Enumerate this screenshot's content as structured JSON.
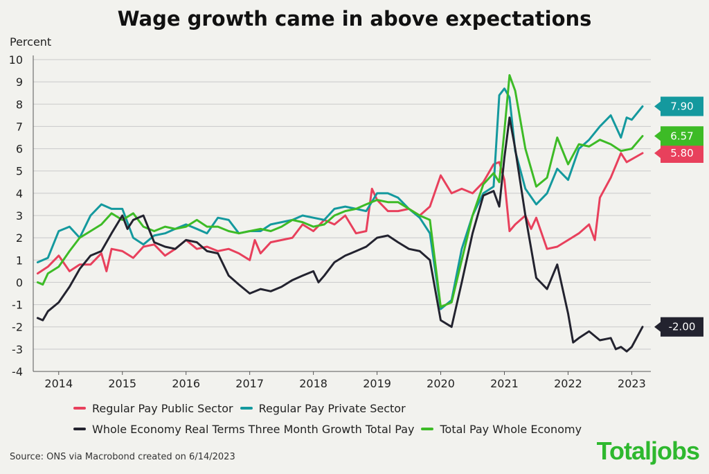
{
  "title": "Wage growth came in above expectations",
  "source": "Source: ONS via Macrobond created on 6/14/2023",
  "brand": "Totaljobs",
  "colors": {
    "public": "#e8405c",
    "private": "#14999e",
    "real": "#23232f",
    "total": "#3dbb26",
    "grid": "#c9c9c9",
    "background": "#f2f2ee"
  },
  "chart_data": {
    "type": "line",
    "ylabel": "Percent",
    "ylim": [
      -4,
      10
    ],
    "yticks": [
      -4,
      -3,
      -2,
      -1,
      0,
      1,
      2,
      3,
      4,
      5,
      6,
      7,
      8,
      9,
      10
    ],
    "ytick_labels": [
      "-4",
      "-3",
      "-2",
      "-1",
      "0",
      "1",
      "2",
      "3",
      "4",
      "5",
      "6",
      "7",
      "8",
      "9",
      "10"
    ],
    "xlim": [
      2013.6,
      2023.3
    ],
    "xticks": [
      2014,
      2015,
      2016,
      2017,
      2018,
      2019,
      2020,
      2021,
      2022,
      2023
    ],
    "xtick_labels": [
      "2014",
      "2015",
      "2016",
      "2017",
      "2018",
      "2019",
      "2020",
      "2021",
      "2022",
      "2023"
    ],
    "grid": "horizontal",
    "legend_position": "bottom",
    "series": [
      {
        "name": "Regular Pay Public Sector",
        "color_key": "public",
        "end_label": "5.80",
        "points": [
          [
            2013.67,
            0.4
          ],
          [
            2013.83,
            0.7
          ],
          [
            2014.0,
            1.2
          ],
          [
            2014.17,
            0.5
          ],
          [
            2014.33,
            0.8
          ],
          [
            2014.5,
            0.8
          ],
          [
            2014.67,
            1.3
          ],
          [
            2014.75,
            0.5
          ],
          [
            2014.83,
            1.5
          ],
          [
            2015.0,
            1.4
          ],
          [
            2015.17,
            1.1
          ],
          [
            2015.33,
            1.6
          ],
          [
            2015.5,
            1.7
          ],
          [
            2015.67,
            1.2
          ],
          [
            2015.83,
            1.5
          ],
          [
            2016.0,
            1.9
          ],
          [
            2016.17,
            1.5
          ],
          [
            2016.33,
            1.6
          ],
          [
            2016.5,
            1.4
          ],
          [
            2016.67,
            1.5
          ],
          [
            2016.83,
            1.3
          ],
          [
            2017.0,
            1.0
          ],
          [
            2017.08,
            1.9
          ],
          [
            2017.17,
            1.3
          ],
          [
            2017.33,
            1.8
          ],
          [
            2017.5,
            1.9
          ],
          [
            2017.67,
            2.0
          ],
          [
            2017.83,
            2.6
          ],
          [
            2018.0,
            2.3
          ],
          [
            2018.17,
            2.8
          ],
          [
            2018.33,
            2.6
          ],
          [
            2018.5,
            3.0
          ],
          [
            2018.67,
            2.2
          ],
          [
            2018.83,
            2.3
          ],
          [
            2018.92,
            4.2
          ],
          [
            2019.0,
            3.7
          ],
          [
            2019.17,
            3.2
          ],
          [
            2019.33,
            3.2
          ],
          [
            2019.5,
            3.3
          ],
          [
            2019.67,
            3.0
          ],
          [
            2019.83,
            3.4
          ],
          [
            2020.0,
            4.8
          ],
          [
            2020.17,
            4.0
          ],
          [
            2020.33,
            4.2
          ],
          [
            2020.5,
            4.0
          ],
          [
            2020.67,
            4.5
          ],
          [
            2020.83,
            5.3
          ],
          [
            2020.92,
            5.4
          ],
          [
            2021.0,
            4.6
          ],
          [
            2021.08,
            2.3
          ],
          [
            2021.17,
            2.6
          ],
          [
            2021.33,
            3.0
          ],
          [
            2021.42,
            2.4
          ],
          [
            2021.5,
            2.9
          ],
          [
            2021.67,
            1.5
          ],
          [
            2021.83,
            1.6
          ],
          [
            2022.0,
            1.9
          ],
          [
            2022.17,
            2.2
          ],
          [
            2022.33,
            2.6
          ],
          [
            2022.42,
            1.9
          ],
          [
            2022.5,
            3.8
          ],
          [
            2022.67,
            4.7
          ],
          [
            2022.83,
            5.8
          ],
          [
            2022.92,
            5.4
          ],
          [
            2023.17,
            5.8
          ]
        ]
      },
      {
        "name": "Regular Pay Private Sector",
        "color_key": "private",
        "end_label": "7.90",
        "points": [
          [
            2013.67,
            0.9
          ],
          [
            2013.83,
            1.1
          ],
          [
            2014.0,
            2.3
          ],
          [
            2014.17,
            2.5
          ],
          [
            2014.33,
            2.0
          ],
          [
            2014.5,
            3.0
          ],
          [
            2014.67,
            3.5
          ],
          [
            2014.83,
            3.3
          ],
          [
            2015.0,
            3.3
          ],
          [
            2015.17,
            2.0
          ],
          [
            2015.33,
            1.7
          ],
          [
            2015.5,
            2.1
          ],
          [
            2015.67,
            2.2
          ],
          [
            2015.83,
            2.4
          ],
          [
            2016.0,
            2.6
          ],
          [
            2016.17,
            2.4
          ],
          [
            2016.33,
            2.2
          ],
          [
            2016.5,
            2.9
          ],
          [
            2016.67,
            2.8
          ],
          [
            2016.83,
            2.2
          ],
          [
            2017.0,
            2.3
          ],
          [
            2017.17,
            2.3
          ],
          [
            2017.33,
            2.6
          ],
          [
            2017.5,
            2.7
          ],
          [
            2017.67,
            2.8
          ],
          [
            2017.83,
            3.0
          ],
          [
            2018.0,
            2.9
          ],
          [
            2018.17,
            2.8
          ],
          [
            2018.33,
            3.3
          ],
          [
            2018.5,
            3.4
          ],
          [
            2018.67,
            3.3
          ],
          [
            2018.83,
            3.2
          ],
          [
            2019.0,
            4.0
          ],
          [
            2019.17,
            4.0
          ],
          [
            2019.33,
            3.8
          ],
          [
            2019.5,
            3.3
          ],
          [
            2019.67,
            2.9
          ],
          [
            2019.83,
            2.2
          ],
          [
            2020.0,
            -1.2
          ],
          [
            2020.17,
            -0.8
          ],
          [
            2020.33,
            1.5
          ],
          [
            2020.5,
            3.0
          ],
          [
            2020.67,
            4.0
          ],
          [
            2020.83,
            4.3
          ],
          [
            2020.92,
            8.4
          ],
          [
            2021.0,
            8.7
          ],
          [
            2021.08,
            8.3
          ],
          [
            2021.17,
            5.9
          ],
          [
            2021.33,
            4.2
          ],
          [
            2021.5,
            3.5
          ],
          [
            2021.67,
            4.0
          ],
          [
            2021.83,
            5.1
          ],
          [
            2022.0,
            4.6
          ],
          [
            2022.17,
            6.0
          ],
          [
            2022.33,
            6.4
          ],
          [
            2022.5,
            7.0
          ],
          [
            2022.67,
            7.5
          ],
          [
            2022.83,
            6.5
          ],
          [
            2022.92,
            7.4
          ],
          [
            2023.0,
            7.3
          ],
          [
            2023.17,
            7.9
          ]
        ]
      },
      {
        "name": "Whole Economy Real Terms Three Month Growth Total Pay",
        "color_key": "real",
        "end_label": "-2.00",
        "points": [
          [
            2013.67,
            -1.6
          ],
          [
            2013.75,
            -1.7
          ],
          [
            2013.83,
            -1.3
          ],
          [
            2014.0,
            -0.9
          ],
          [
            2014.17,
            -0.2
          ],
          [
            2014.33,
            0.6
          ],
          [
            2014.5,
            1.2
          ],
          [
            2014.67,
            1.4
          ],
          [
            2014.83,
            2.2
          ],
          [
            2015.0,
            3.0
          ],
          [
            2015.08,
            2.4
          ],
          [
            2015.17,
            2.8
          ],
          [
            2015.33,
            3.0
          ],
          [
            2015.5,
            1.8
          ],
          [
            2015.67,
            1.6
          ],
          [
            2015.83,
            1.5
          ],
          [
            2016.0,
            1.9
          ],
          [
            2016.17,
            1.8
          ],
          [
            2016.33,
            1.4
          ],
          [
            2016.5,
            1.3
          ],
          [
            2016.67,
            0.3
          ],
          [
            2016.83,
            -0.1
          ],
          [
            2017.0,
            -0.5
          ],
          [
            2017.17,
            -0.3
          ],
          [
            2017.33,
            -0.4
          ],
          [
            2017.5,
            -0.2
          ],
          [
            2017.67,
            0.1
          ],
          [
            2017.83,
            0.3
          ],
          [
            2018.0,
            0.5
          ],
          [
            2018.08,
            0.0
          ],
          [
            2018.17,
            0.3
          ],
          [
            2018.33,
            0.9
          ],
          [
            2018.5,
            1.2
          ],
          [
            2018.67,
            1.4
          ],
          [
            2018.83,
            1.6
          ],
          [
            2019.0,
            2.0
          ],
          [
            2019.17,
            2.1
          ],
          [
            2019.33,
            1.8
          ],
          [
            2019.5,
            1.5
          ],
          [
            2019.67,
            1.4
          ],
          [
            2019.83,
            1.0
          ],
          [
            2020.0,
            -1.7
          ],
          [
            2020.17,
            -2.0
          ],
          [
            2020.33,
            0.0
          ],
          [
            2020.5,
            2.2
          ],
          [
            2020.67,
            3.9
          ],
          [
            2020.83,
            4.1
          ],
          [
            2020.92,
            3.4
          ],
          [
            2021.0,
            5.6
          ],
          [
            2021.08,
            7.4
          ],
          [
            2021.17,
            6.0
          ],
          [
            2021.33,
            3.0
          ],
          [
            2021.5,
            0.2
          ],
          [
            2021.67,
            -0.3
          ],
          [
            2021.83,
            0.8
          ],
          [
            2022.0,
            -1.4
          ],
          [
            2022.08,
            -2.7
          ],
          [
            2022.17,
            -2.5
          ],
          [
            2022.33,
            -2.2
          ],
          [
            2022.5,
            -2.6
          ],
          [
            2022.67,
            -2.5
          ],
          [
            2022.75,
            -3.0
          ],
          [
            2022.83,
            -2.9
          ],
          [
            2022.92,
            -3.1
          ],
          [
            2023.0,
            -2.9
          ],
          [
            2023.17,
            -2.0
          ]
        ]
      },
      {
        "name": "Total Pay Whole Economy",
        "color_key": "total",
        "end_label": "6.57",
        "points": [
          [
            2013.67,
            0.0
          ],
          [
            2013.75,
            -0.1
          ],
          [
            2013.83,
            0.4
          ],
          [
            2014.0,
            0.7
          ],
          [
            2014.17,
            1.4
          ],
          [
            2014.33,
            2.0
          ],
          [
            2014.5,
            2.3
          ],
          [
            2014.67,
            2.6
          ],
          [
            2014.83,
            3.1
          ],
          [
            2015.0,
            2.8
          ],
          [
            2015.17,
            3.1
          ],
          [
            2015.33,
            2.5
          ],
          [
            2015.5,
            2.3
          ],
          [
            2015.67,
            2.5
          ],
          [
            2015.83,
            2.4
          ],
          [
            2016.0,
            2.5
          ],
          [
            2016.17,
            2.8
          ],
          [
            2016.33,
            2.5
          ],
          [
            2016.5,
            2.5
          ],
          [
            2016.67,
            2.3
          ],
          [
            2016.83,
            2.2
          ],
          [
            2017.0,
            2.3
          ],
          [
            2017.17,
            2.4
          ],
          [
            2017.33,
            2.3
          ],
          [
            2017.5,
            2.5
          ],
          [
            2017.67,
            2.8
          ],
          [
            2017.83,
            2.7
          ],
          [
            2018.0,
            2.5
          ],
          [
            2018.17,
            2.6
          ],
          [
            2018.33,
            3.0
          ],
          [
            2018.5,
            3.2
          ],
          [
            2018.67,
            3.3
          ],
          [
            2018.83,
            3.5
          ],
          [
            2019.0,
            3.7
          ],
          [
            2019.17,
            3.6
          ],
          [
            2019.33,
            3.6
          ],
          [
            2019.5,
            3.3
          ],
          [
            2019.67,
            3.0
          ],
          [
            2019.83,
            2.8
          ],
          [
            2020.0,
            -1.1
          ],
          [
            2020.17,
            -0.9
          ],
          [
            2020.33,
            1.0
          ],
          [
            2020.5,
            3.0
          ],
          [
            2020.67,
            4.4
          ],
          [
            2020.83,
            4.9
          ],
          [
            2020.92,
            4.5
          ],
          [
            2021.0,
            6.8
          ],
          [
            2021.08,
            9.3
          ],
          [
            2021.17,
            8.6
          ],
          [
            2021.33,
            6.0
          ],
          [
            2021.5,
            4.3
          ],
          [
            2021.67,
            4.7
          ],
          [
            2021.83,
            6.5
          ],
          [
            2022.0,
            5.3
          ],
          [
            2022.17,
            6.2
          ],
          [
            2022.33,
            6.1
          ],
          [
            2022.5,
            6.4
          ],
          [
            2022.67,
            6.2
          ],
          [
            2022.83,
            5.9
          ],
          [
            2023.0,
            6.0
          ],
          [
            2023.17,
            6.57
          ]
        ]
      }
    ]
  }
}
